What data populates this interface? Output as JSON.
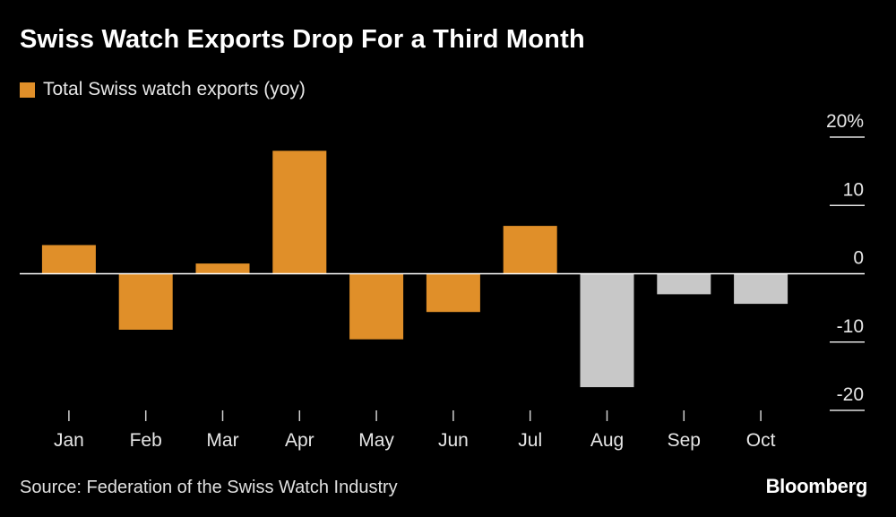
{
  "title": "Swiss Watch Exports Drop For a Third Month",
  "legend": {
    "label": "Total Swiss watch exports (yoy)",
    "color": "#e08f29"
  },
  "source": "Source: Federation of the Swiss Watch Industry",
  "brand": "Bloomberg",
  "colors": {
    "highlight": "#e08f29",
    "muted": "#c8c8c8",
    "axis": "#ffffff"
  },
  "chart_data": {
    "type": "bar",
    "title": "Swiss Watch Exports Drop For a Third Month",
    "xlabel": "",
    "ylabel": "",
    "categories": [
      "Jan",
      "Feb",
      "Mar",
      "Apr",
      "May",
      "Jun",
      "Jul",
      "Aug",
      "Sep",
      "Oct"
    ],
    "series": [
      {
        "name": "Total Swiss watch exports (yoy)",
        "values": [
          4.2,
          -8.2,
          1.5,
          18.0,
          -9.6,
          -5.6,
          7.0,
          -16.6,
          -3.0,
          -4.4
        ],
        "bar_colors": [
          "#e08f29",
          "#e08f29",
          "#e08f29",
          "#e08f29",
          "#e08f29",
          "#e08f29",
          "#e08f29",
          "#c8c8c8",
          "#c8c8c8",
          "#c8c8c8"
        ]
      }
    ],
    "ylim": [
      -20,
      20
    ],
    "yticks": [
      20,
      10,
      0,
      -10,
      -20
    ],
    "ytick_labels": [
      "20%",
      "10",
      "0",
      "-10",
      "-20"
    ],
    "axis_side": "right",
    "grid": false,
    "legend_position": "top-left"
  }
}
